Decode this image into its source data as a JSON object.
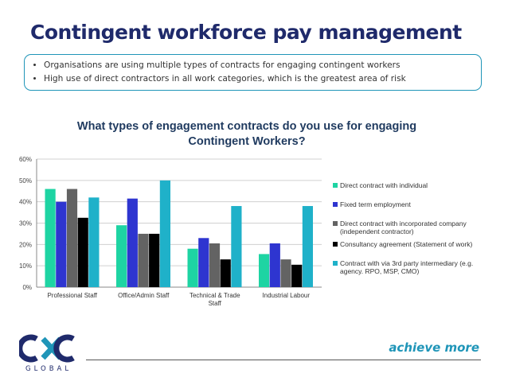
{
  "slide": {
    "title": "Contingent workforce pay management",
    "bullets": [
      "Organisations are using multiple types of contracts for engaging contingent workers",
      "High use of direct contractors in all work categories, which is the greatest area of risk"
    ],
    "tagline": "achieve more",
    "logo_text": "CXC",
    "logo_subtext": "GLOBAL"
  },
  "colors": {
    "title": "#1f2a6b",
    "accent": "#1f95b8"
  },
  "chart_data": {
    "type": "bar",
    "title": "What types of engagement contracts do you use for engaging Contingent Workers?",
    "categories": [
      "Professional Staff",
      "Office/Admin Staff",
      "Technical & Trade Staff",
      "Industrial Labour"
    ],
    "ylim": [
      0,
      60
    ],
    "yticks": [
      "0%",
      "10%",
      "20%",
      "30%",
      "40%",
      "50%",
      "60%"
    ],
    "legend_position": "right",
    "series": [
      {
        "name": "Direct contract with individual",
        "color": "#1ed4a3",
        "values": [
          46,
          29,
          18,
          15.5
        ]
      },
      {
        "name": "Fixed term employment",
        "color": "#2e35d0",
        "values": [
          40,
          41.5,
          23,
          20.5
        ]
      },
      {
        "name": "Direct contract with incorporated company (independent contractor)",
        "color": "#636363",
        "values": [
          46,
          25,
          20.5,
          13
        ]
      },
      {
        "name": "Consultancy agreement (Statement of work)",
        "color": "#000000",
        "values": [
          32.5,
          25,
          13,
          10.5
        ]
      },
      {
        "name": "Contract with via 3rd party intermediary (e.g. agency. RPO, MSP, CMO)",
        "color": "#1fb1c9",
        "values": [
          42,
          50,
          38,
          38
        ]
      }
    ]
  }
}
